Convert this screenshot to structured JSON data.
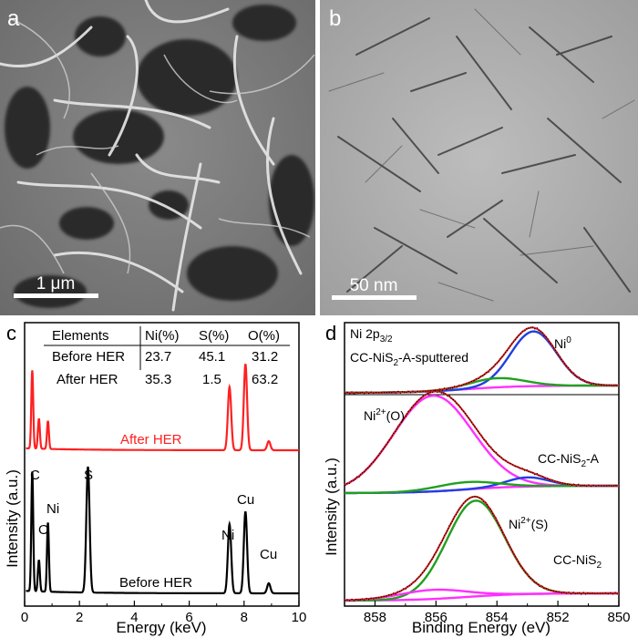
{
  "panels": {
    "a": {
      "label": "a",
      "scale_bar": "1 μm"
    },
    "b": {
      "label": "b",
      "scale_bar": "50 nm"
    },
    "c": {
      "label": "c"
    },
    "d": {
      "label": "d"
    }
  },
  "colors": {
    "after_her": "#ff2020",
    "before_her": "#000000",
    "fit_red": "#e02020",
    "fit_blue": "#2040e0",
    "fit_green": "#20a020",
    "fit_magenta": "#ff30ff",
    "background_gray": "#909090"
  },
  "chart_data": [
    {
      "type": "line",
      "panel": "c",
      "xlabel": "Energy (keV)",
      "ylabel": "Intensity (a.u.)",
      "xlim": [
        0,
        10
      ],
      "x_ticks": [
        "0",
        "2",
        "4",
        "6",
        "8",
        "10"
      ],
      "series": [
        {
          "name": "After HER",
          "peaks_keV": [
            0.28,
            0.52,
            0.85,
            7.47,
            8.05,
            8.9
          ],
          "relative_heights": [
            0.78,
            0.3,
            0.28,
            0.63,
            0.86,
            0.09
          ]
        },
        {
          "name": "Before HER",
          "peaks_keV": [
            0.28,
            0.52,
            0.85,
            2.31,
            7.47,
            8.05,
            8.9
          ],
          "relative_heights": [
            0.95,
            0.25,
            0.55,
            1.0,
            0.55,
            0.65,
            0.08
          ]
        }
      ],
      "peak_labels": [
        {
          "text": "C",
          "x": 0.28
        },
        {
          "text": "O",
          "x": 0.52
        },
        {
          "text": "Ni",
          "x": 0.85
        },
        {
          "text": "S",
          "x": 2.31
        },
        {
          "text": "Ni",
          "x": 7.47
        },
        {
          "text": "Cu",
          "x": 8.05
        },
        {
          "text": "Cu",
          "x": 8.9
        }
      ],
      "table": {
        "headers": [
          "Elements",
          "Ni(%)",
          "S(%)",
          "O(%)"
        ],
        "rows": [
          [
            "Before HER",
            "23.7",
            "45.1",
            "31.2"
          ],
          [
            "After HER",
            "35.3",
            "1.5",
            "63.2"
          ]
        ]
      }
    },
    {
      "type": "line",
      "panel": "d",
      "xlabel": "Binding Energy (eV)",
      "ylabel": "Intensity (a.u.)",
      "xlim": [
        859,
        850
      ],
      "x_reversed": true,
      "x_ticks": [
        "858",
        "856",
        "854",
        "852",
        "850"
      ],
      "title": "Ni 2p",
      "title_sub": "3/2",
      "spectra": [
        {
          "name": "CC-NiS",
          "name_sub": "2",
          "name_suffix": "-A-sputtered",
          "components": [
            {
              "label": "Ni",
              "label_sup": "0",
              "center_eV": 852.8,
              "color": "blue"
            },
            {
              "center_eV": 854.0,
              "color": "green"
            }
          ]
        },
        {
          "name": "CC-NiS",
          "name_sub": "2",
          "name_suffix": "-A",
          "components": [
            {
              "label": "Ni",
              "label_sup": "2+",
              "label_suffix": "(O)",
              "center_eV": 856.1,
              "color": "magenta"
            },
            {
              "center_eV": 853.0,
              "color": "blue"
            },
            {
              "center_eV": 855.0,
              "color": "green"
            }
          ]
        },
        {
          "name": "CC-NiS",
          "name_sub": "2",
          "name_suffix": "",
          "components": [
            {
              "label": "Ni",
              "label_sup": "2+",
              "label_suffix": "(S)",
              "center_eV": 854.7,
              "color": "green"
            },
            {
              "center_eV": 856.1,
              "color": "magenta"
            }
          ]
        }
      ]
    }
  ]
}
